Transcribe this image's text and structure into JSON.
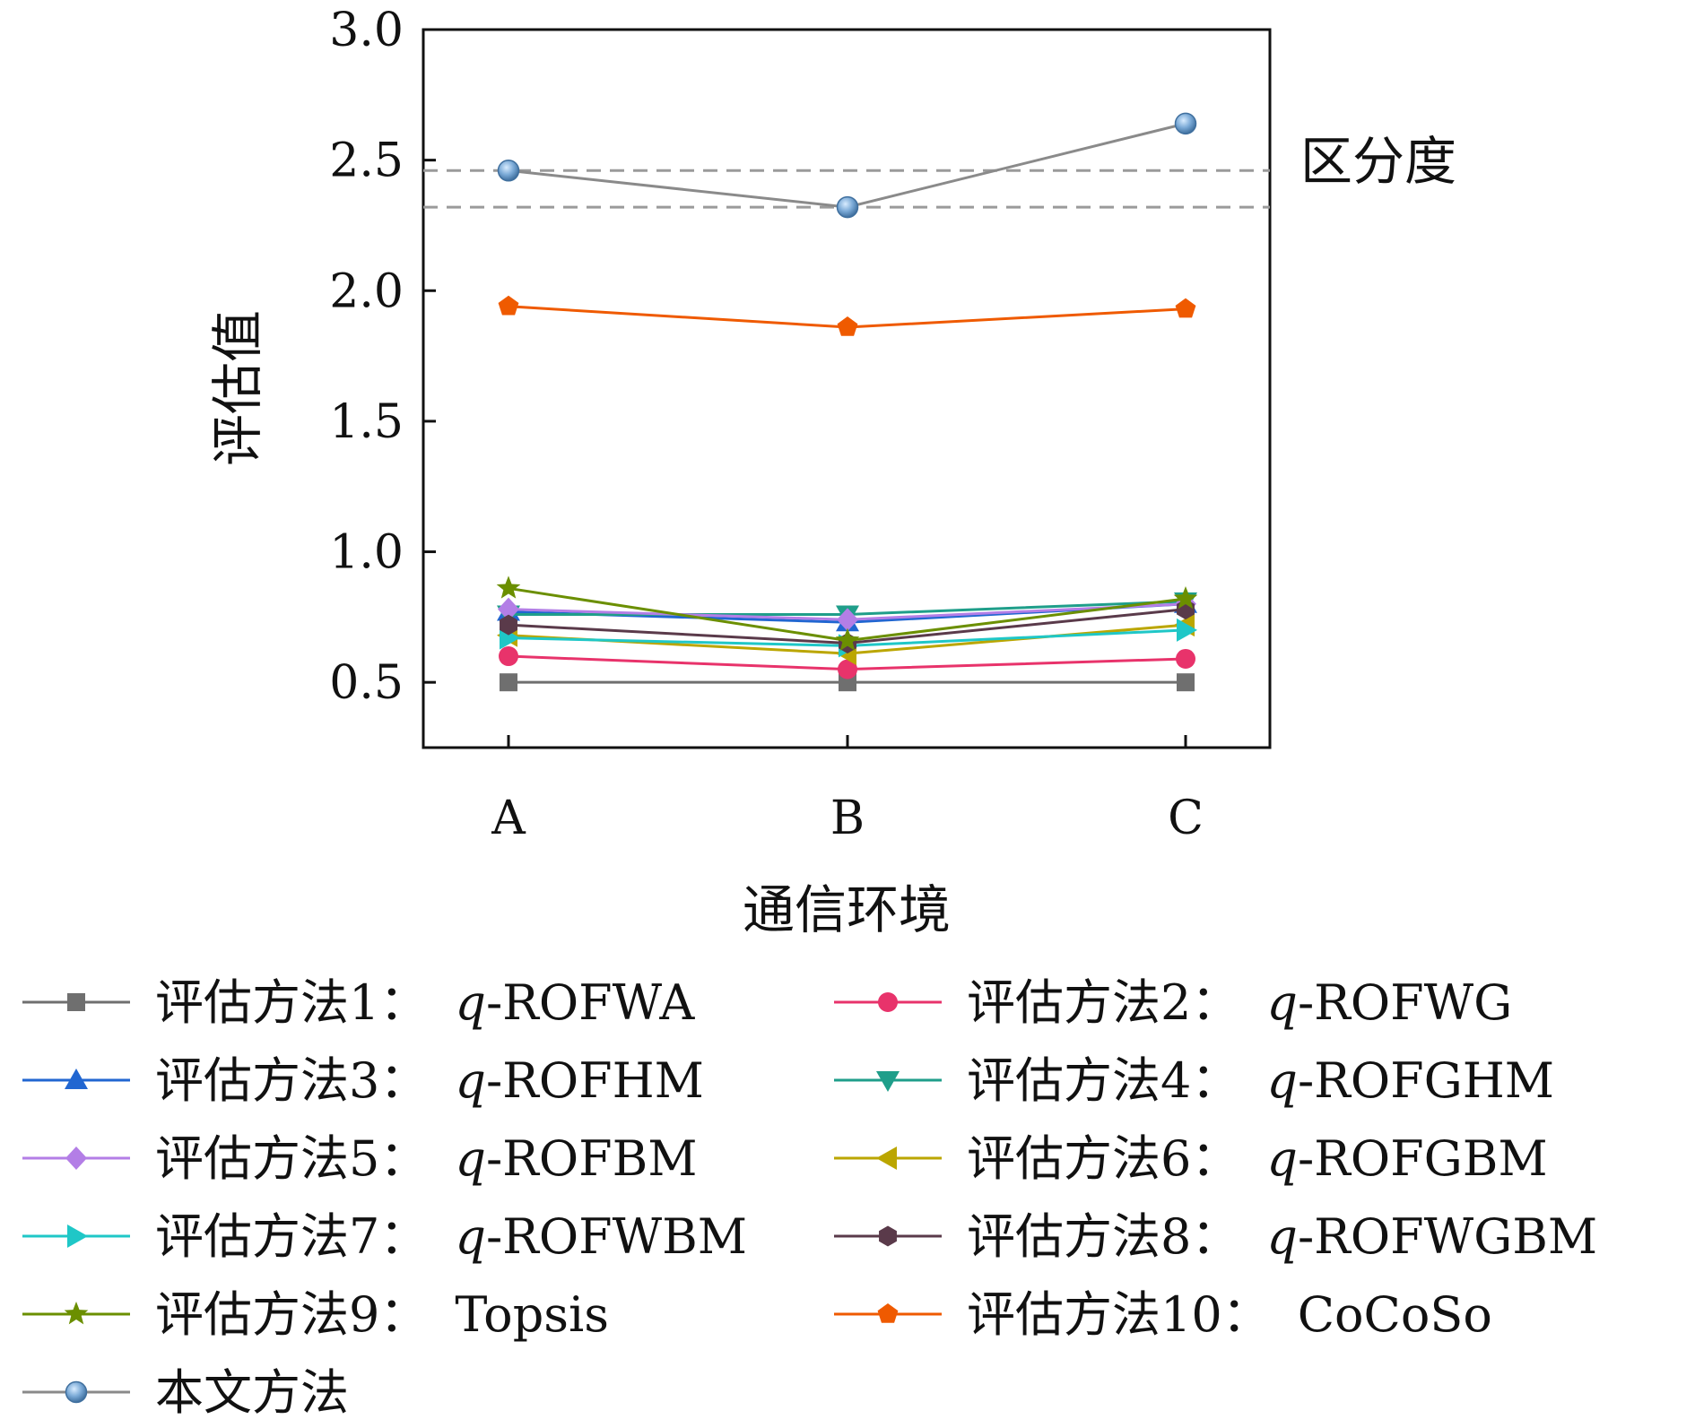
{
  "chart_data": {
    "type": "line",
    "xlabel": "通信环境",
    "ylabel": "评估值",
    "categories": [
      "A",
      "B",
      "C"
    ],
    "ylim": [
      0.25,
      3.0
    ],
    "yticks": [
      "0.5",
      "1.0",
      "1.5",
      "2.0",
      "2.5",
      "3.0"
    ],
    "annotation": "区分度",
    "reference_lines": [
      2.46,
      2.32
    ],
    "grid": false,
    "legend_position": "bottom",
    "series": [
      {
        "name": "评估方法1：",
        "suffix": "-ROFWA",
        "italic_prefix": "q",
        "values": [
          0.5,
          0.5,
          0.5
        ],
        "color": "#6f6f6f",
        "marker": "square"
      },
      {
        "name": "评估方法2：",
        "suffix": "-ROFWG",
        "italic_prefix": "q",
        "values": [
          0.6,
          0.55,
          0.59
        ],
        "color": "#e8336b",
        "marker": "circle"
      },
      {
        "name": "评估方法3：",
        "suffix": "-ROFHM",
        "italic_prefix": "q",
        "values": [
          0.77,
          0.73,
          0.8
        ],
        "color": "#2166d1",
        "marker": "triangle-up"
      },
      {
        "name": "评估方法4：",
        "suffix": "-ROFGHM",
        "italic_prefix": "q",
        "values": [
          0.76,
          0.76,
          0.81
        ],
        "color": "#1f9e8a",
        "marker": "triangle-down"
      },
      {
        "name": "评估方法5：",
        "suffix": "-ROFBM",
        "italic_prefix": "q",
        "values": [
          0.78,
          0.74,
          0.8
        ],
        "color": "#b37ee6",
        "marker": "diamond"
      },
      {
        "name": "评估方法6：",
        "suffix": "-ROFGBM",
        "italic_prefix": "q",
        "values": [
          0.68,
          0.61,
          0.72
        ],
        "color": "#bba600",
        "marker": "triangle-left"
      },
      {
        "name": "评估方法7：",
        "suffix": "-ROFWBM",
        "italic_prefix": "q",
        "values": [
          0.67,
          0.64,
          0.7
        ],
        "color": "#1fc7c7",
        "marker": "triangle-right"
      },
      {
        "name": "评估方法8：",
        "suffix": "-ROFWGBM",
        "italic_prefix": "q",
        "values": [
          0.72,
          0.65,
          0.78
        ],
        "color": "#5a3a4a",
        "marker": "hexagon"
      },
      {
        "name": "评估方法9：",
        "suffix": "Topsis",
        "italic_prefix": "",
        "values": [
          0.86,
          0.66,
          0.82
        ],
        "color": "#6b8f00",
        "marker": "star"
      },
      {
        "name": "评估方法10：",
        "suffix": "CoCoSo",
        "italic_prefix": "",
        "values": [
          1.94,
          1.86,
          1.93
        ],
        "color": "#ef5a00",
        "marker": "pentagon"
      },
      {
        "name": "本文方法",
        "suffix": "",
        "italic_prefix": "",
        "values": [
          2.46,
          2.32,
          2.64
        ],
        "color": "#8a8a8a",
        "marker": "sphere"
      }
    ]
  }
}
